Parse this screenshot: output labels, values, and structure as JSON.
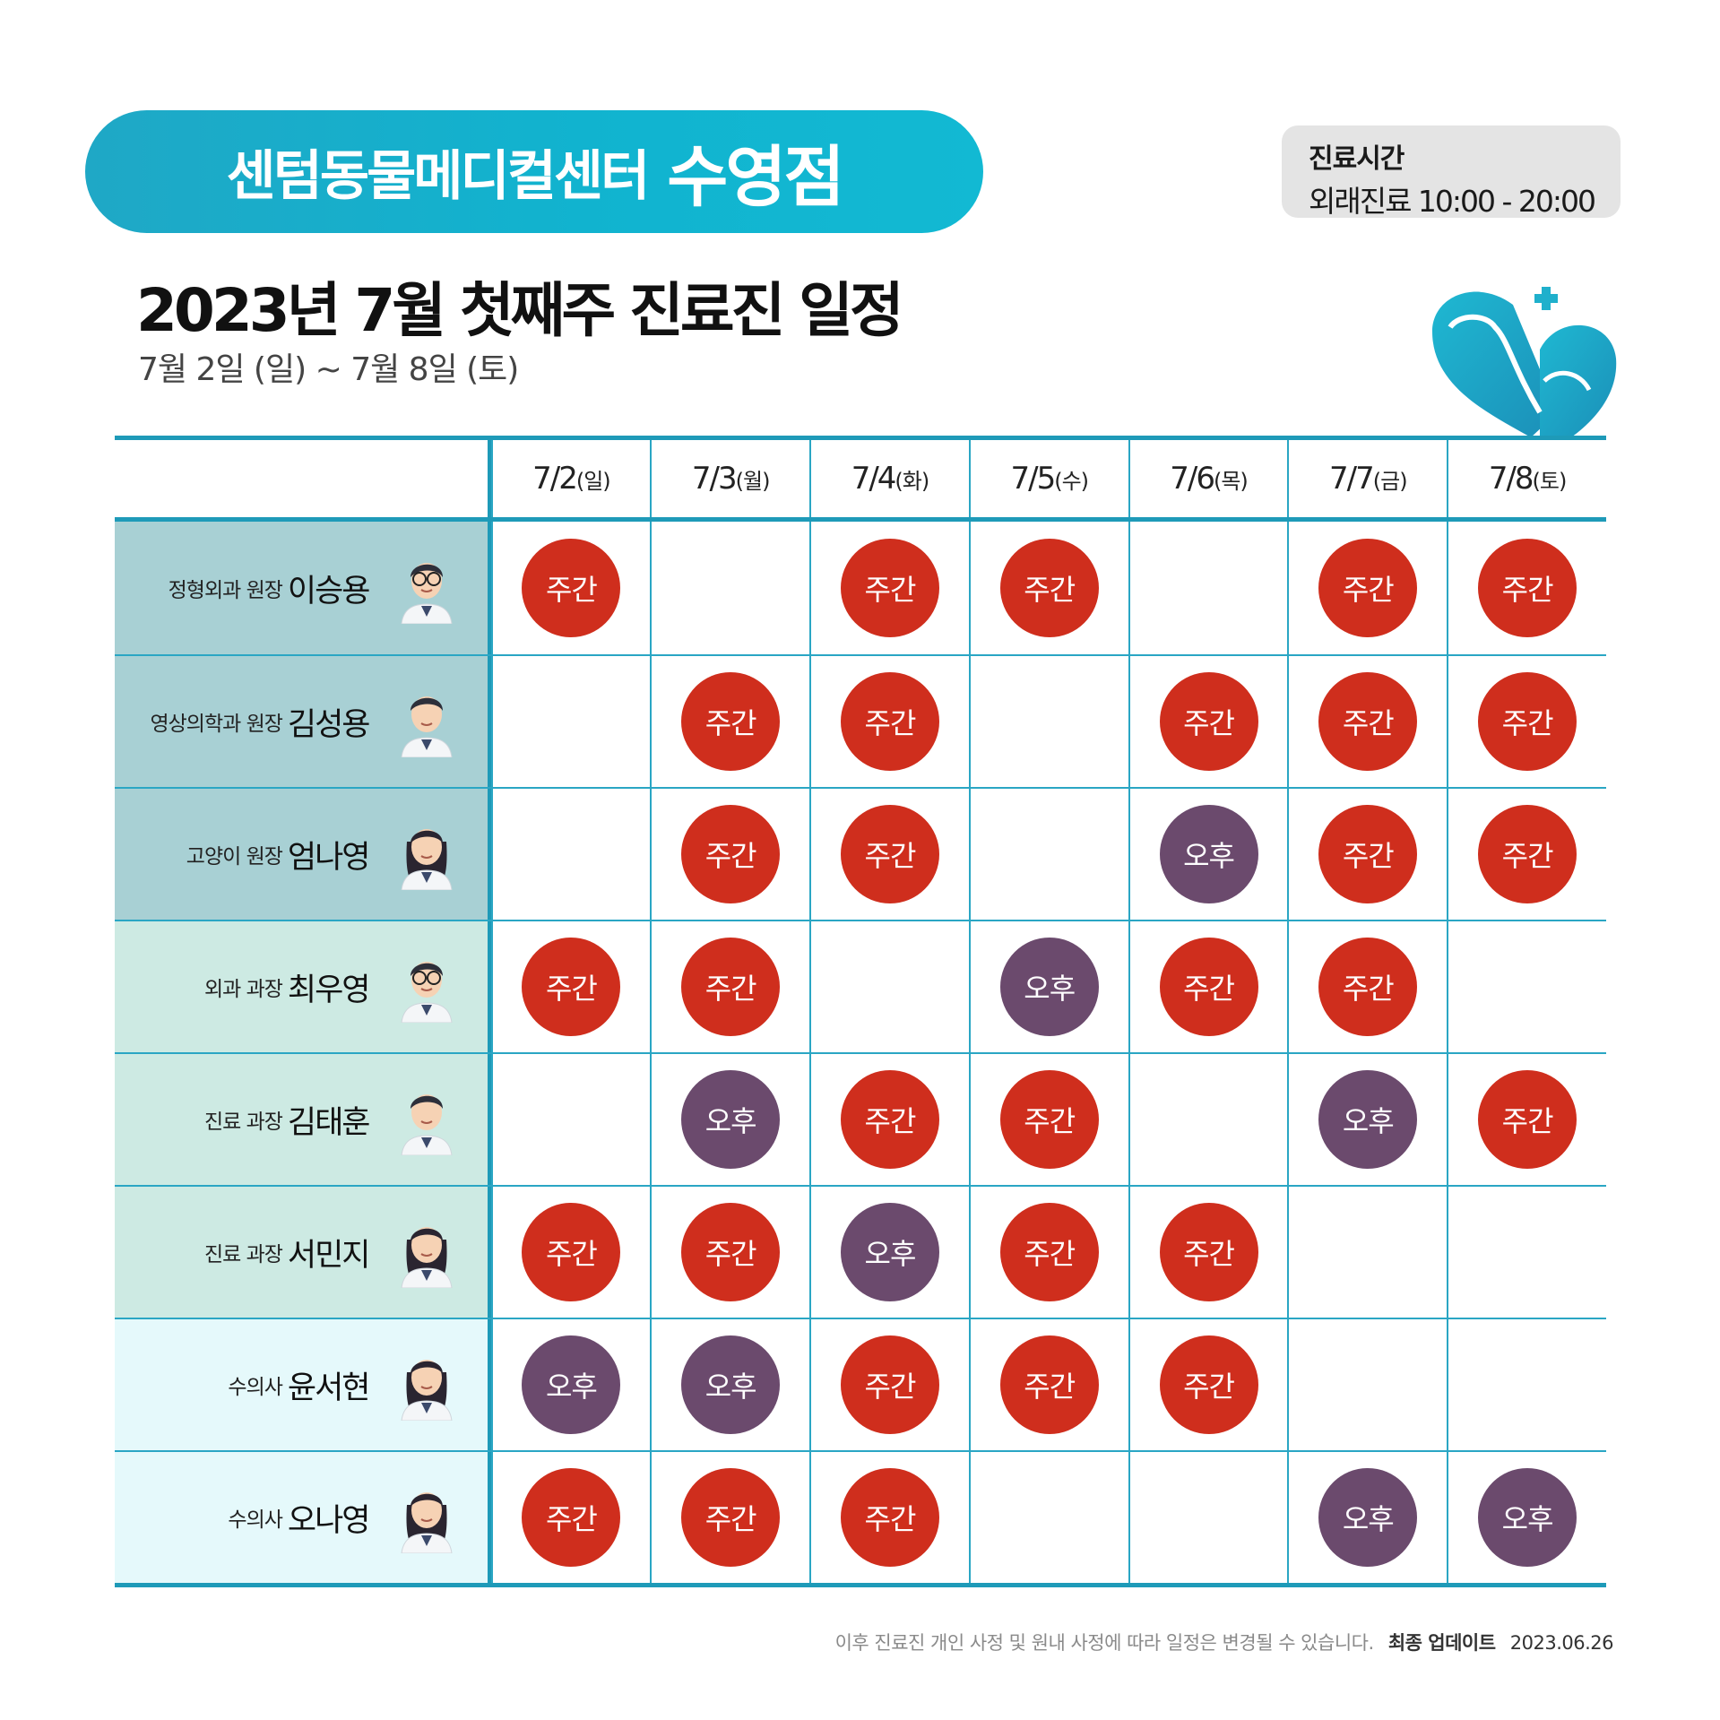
{
  "header": {
    "center_name": "센텀동물메디컬센터",
    "branch": "수영점",
    "hours_title": "진료시간",
    "hours_line": "외래진료 10:00 - 20:00",
    "title": "2023년 7월 첫째주 진료진 일정",
    "subtitle": "7월 2일 (일) ~ 7월 8일 (토)"
  },
  "days": [
    {
      "date": "7/2",
      "dow": "(일)"
    },
    {
      "date": "7/3",
      "dow": "(월)"
    },
    {
      "date": "7/4",
      "dow": "(화)"
    },
    {
      "date": "7/5",
      "dow": "(수)"
    },
    {
      "date": "7/6",
      "dow": "(목)"
    },
    {
      "date": "7/7",
      "dow": "(금)"
    },
    {
      "date": "7/8",
      "dow": "(토)"
    }
  ],
  "shift_labels": {
    "day": "주간",
    "pm": "오후"
  },
  "doctors": [
    {
      "role": "정형외과 원장",
      "name": "이승용",
      "shifts": [
        "day",
        "",
        "day",
        "day",
        "",
        "day",
        "day"
      ]
    },
    {
      "role": "영상의학과 원장",
      "name": "김성용",
      "shifts": [
        "",
        "day",
        "day",
        "",
        "day",
        "day",
        "day"
      ]
    },
    {
      "role": "고양이 원장",
      "name": "엄나영",
      "shifts": [
        "",
        "day",
        "day",
        "",
        "pm",
        "day",
        "day"
      ]
    },
    {
      "role": "외과 과장",
      "name": "최우영",
      "shifts": [
        "day",
        "day",
        "",
        "pm",
        "day",
        "day",
        ""
      ]
    },
    {
      "role": "진료 과장",
      "name": "김태훈",
      "shifts": [
        "",
        "pm",
        "day",
        "day",
        "",
        "pm",
        "day"
      ]
    },
    {
      "role": "진료 과장",
      "name": "서민지",
      "shifts": [
        "day",
        "day",
        "pm",
        "day",
        "day",
        "",
        ""
      ]
    },
    {
      "role": "수의사",
      "name": "윤서현",
      "shifts": [
        "pm",
        "pm",
        "day",
        "day",
        "day",
        "",
        ""
      ]
    },
    {
      "role": "수의사",
      "name": "오나영",
      "shifts": [
        "day",
        "day",
        "day",
        "",
        "",
        "pm",
        "pm"
      ]
    }
  ],
  "footer": {
    "note": "이후 진료진 개인 사정 및 원내 사정에 따라 일정은 변경될 수 있습니다.",
    "updated_label": "최종 업데이트",
    "updated_date": "2023.06.26"
  },
  "colors": {
    "day": "#cf2e1d",
    "pm": "#6b4a6d",
    "accent": "#1e9ab8"
  }
}
